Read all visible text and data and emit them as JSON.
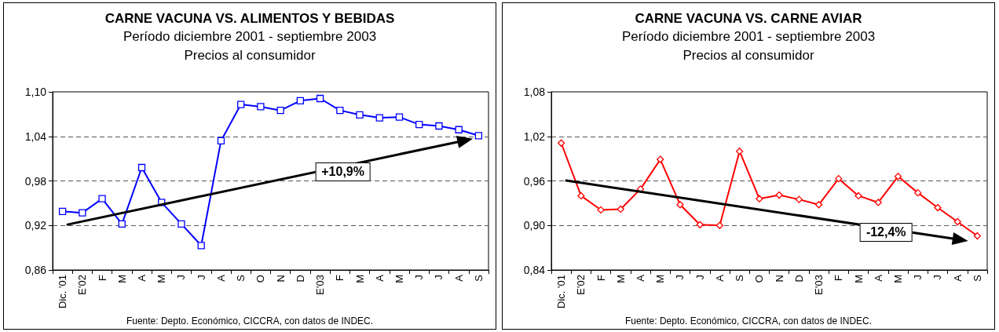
{
  "chart_data": [
    {
      "type": "line",
      "title": "CARNE VACUNA VS. ALIMENTOS Y BEBIDAS",
      "subtitle": "Período diciembre 2001 - septiembre 2003\nPrecios al consumidor",
      "categories": [
        "Dic. '01",
        "E'02",
        "F",
        "M",
        "A",
        "M",
        "J",
        "J",
        "A",
        "S",
        "O",
        "N",
        "D",
        "E'03",
        "F",
        "M",
        "A",
        "M",
        "J",
        "J",
        "A",
        "S"
      ],
      "series": [
        {
          "color": "#0000ff",
          "marker": "square",
          "values": [
            0.939,
            0.937,
            0.956,
            0.922,
            0.998,
            0.951,
            0.922,
            0.893,
            1.034,
            1.083,
            1.08,
            1.075,
            1.088,
            1.091,
            1.075,
            1.069,
            1.065,
            1.066,
            1.056,
            1.054,
            1.049,
            1.041
          ]
        }
      ],
      "ylim": [
        0.86,
        1.1
      ],
      "yticks": [
        {
          "value": 0.86,
          "label": "0,86"
        },
        {
          "value": 0.92,
          "label": "0,92"
        },
        {
          "value": 0.98,
          "label": "0,98"
        },
        {
          "value": 1.04,
          "label": "1,04"
        },
        {
          "value": 1.1,
          "label": "1,10"
        }
      ],
      "grid": "y",
      "annotations": [
        "+10,9%",
        "Fuente: Depto. Económico, CICCRA, con datos de INDEC."
      ]
    },
    {
      "type": "line",
      "title": "CARNE VACUNA VS. CARNE AVIAR",
      "subtitle": "Período diciembre 2001 - septiembre 2003\nPrecios al consumidor",
      "categories": [
        "Dic. '01",
        "E'02",
        "F",
        "M",
        "A",
        "M",
        "J",
        "J",
        "A",
        "S",
        "O",
        "N",
        "D",
        "E'03",
        "F",
        "M",
        "A",
        "M",
        "J",
        "J",
        "A",
        "S"
      ],
      "series": [
        {
          "color": "#ff0000",
          "marker": "diamond",
          "values": [
            1.011,
            0.94,
            0.921,
            0.922,
            0.949,
            0.989,
            0.928,
            0.901,
            0.9,
            1.0,
            0.936,
            0.941,
            0.935,
            0.928,
            0.963,
            0.94,
            0.931,
            0.966,
            0.944,
            0.924,
            0.905,
            0.886
          ]
        }
      ],
      "ylim": [
        0.84,
        1.08
      ],
      "yticks": [
        {
          "value": 0.84,
          "label": "0,84"
        },
        {
          "value": 0.9,
          "label": "0,90"
        },
        {
          "value": 0.96,
          "label": "0,96"
        },
        {
          "value": 1.02,
          "label": "1,02"
        },
        {
          "value": 1.08,
          "label": "1,08"
        }
      ],
      "grid": "y",
      "annotations": [
        "-12,4%",
        "Fuente: Depto. Económico, CICCRA, con datos de INDEC."
      ]
    }
  ]
}
